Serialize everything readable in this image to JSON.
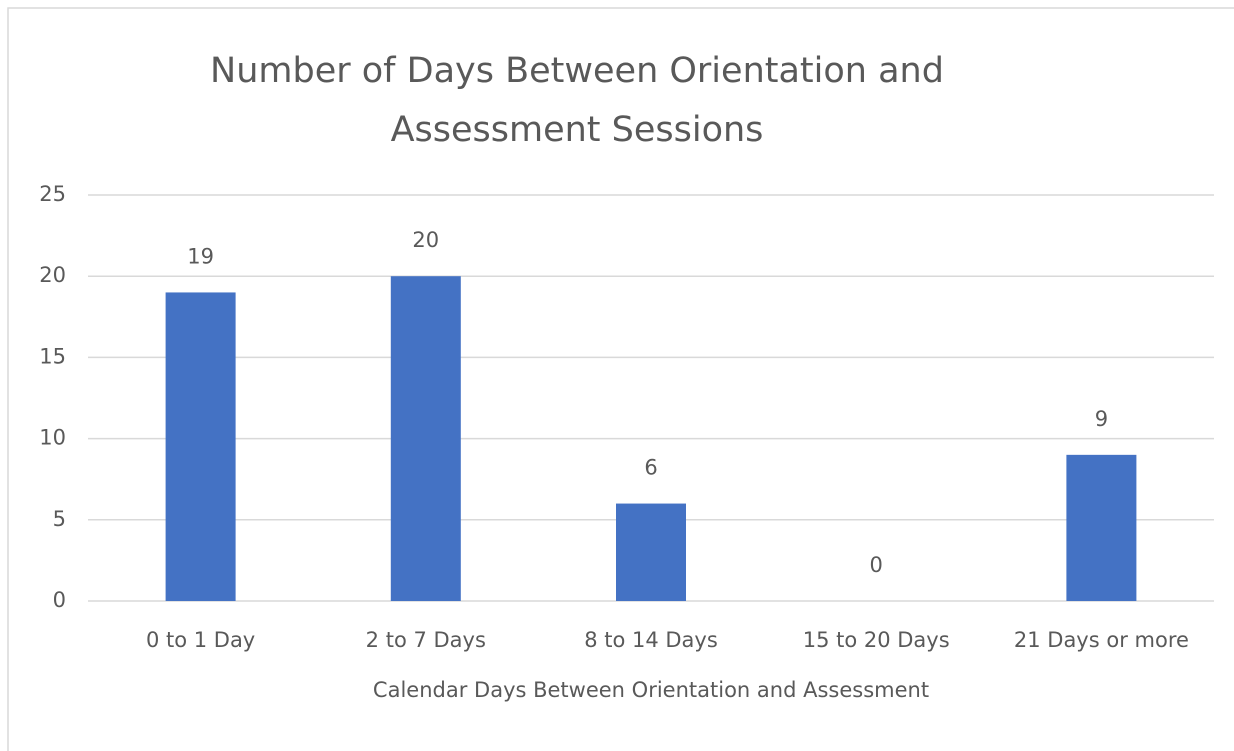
{
  "chart_data": {
    "type": "bar",
    "title": [
      "Number of Days Between Orientation and",
      "Assessment Sessions"
    ],
    "x_label": "Calendar Days Between Orientation and Assessment",
    "categories": [
      "0 to 1 Day",
      "2 to 7 Days",
      "8 to 14 Days",
      "15 to 20 Days",
      "21 Days or more"
    ],
    "values": [
      19,
      20,
      6,
      0,
      9
    ],
    "color": "#4472c4",
    "ylim": [
      0,
      25
    ],
    "yticks": [
      0,
      5,
      10,
      15,
      20,
      25
    ],
    "grid": true,
    "data_labels": true
  }
}
